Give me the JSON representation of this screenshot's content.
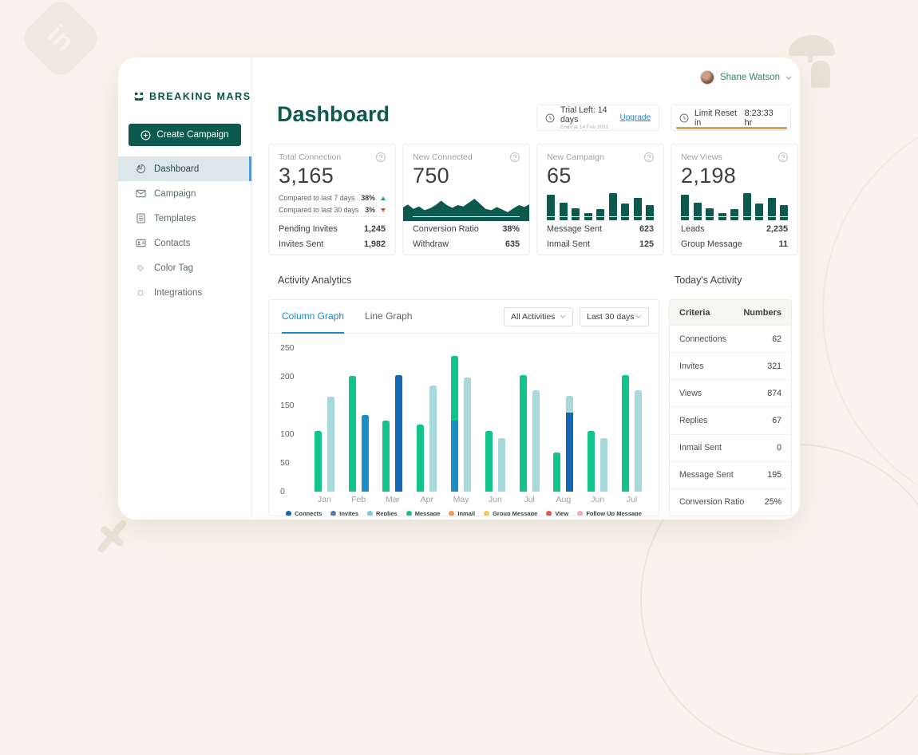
{
  "brand": {
    "name": "BREAKING MARS"
  },
  "sidebar": {
    "create_button": "Create Campaign",
    "items": [
      {
        "label": "Dashboard"
      },
      {
        "label": "Campaign"
      },
      {
        "label": "Templates"
      },
      {
        "label": "Contacts"
      },
      {
        "label": "Color Tag"
      },
      {
        "label": "Integrations"
      }
    ]
  },
  "header": {
    "user_name": "Shane Watson",
    "page_title": "Dashboard",
    "trial_label": "Trial Left: 14 days",
    "trial_sub": "Ends at 14 Feb 2021",
    "upgrade_label": "Upgrade",
    "limit_label": "Limit Reset in",
    "limit_value": "8:23:33 hr"
  },
  "icons": {
    "help": "?"
  },
  "stat_cards": [
    {
      "title": "Total Connection",
      "value": "3,165",
      "compare": [
        {
          "label": "Compared to last 7 days",
          "value": "38%",
          "dir": "up"
        },
        {
          "label": "Compared to last 30 days",
          "value": "3%",
          "dir": "down"
        }
      ],
      "rows": [
        {
          "label": "Pending Invites",
          "value": "1,245"
        },
        {
          "label": "Invites Sent",
          "value": "1,982"
        }
      ]
    },
    {
      "title": "New Connected",
      "value": "750",
      "spark": [
        42,
        52,
        38,
        46,
        34,
        40,
        50,
        64,
        50,
        42,
        50,
        46,
        58,
        70,
        54,
        38,
        34,
        44,
        36,
        28,
        40,
        50,
        44,
        54
      ],
      "rows": [
        {
          "label": "Conversion Ratio",
          "value": "38%"
        },
        {
          "label": "Withdraw",
          "value": "635"
        }
      ]
    },
    {
      "title": "New Campaign",
      "value": "65",
      "mini_bars": [
        80,
        55,
        38,
        22,
        35,
        85,
        52,
        70,
        48
      ],
      "rows": [
        {
          "label": "Message Sent",
          "value": "623"
        },
        {
          "label": "Inmail Sent",
          "value": "125"
        }
      ]
    },
    {
      "title": "New Views",
      "value": "2,198",
      "mini_bars": [
        80,
        55,
        38,
        22,
        35,
        85,
        52,
        70,
        48
      ],
      "rows": [
        {
          "label": "Leads",
          "value": "2,235"
        },
        {
          "label": "Group Message",
          "value": "11"
        }
      ]
    }
  ],
  "analytics": {
    "section_title": "Activity Analytics",
    "tabs": [
      {
        "label": "Column Graph",
        "active": true
      },
      {
        "label": "Line Graph",
        "active": false
      }
    ],
    "filters": [
      {
        "value": "All Activities"
      },
      {
        "value": "Last 30 days"
      }
    ]
  },
  "chart_data": {
    "type": "bar",
    "title": "Activity Analytics",
    "ylim": [
      0,
      250
    ],
    "yticks": [
      "250",
      "200",
      "150",
      "100",
      "50",
      "0"
    ],
    "categories": [
      "Jan",
      "Feb",
      "Mar",
      "Apr",
      "May",
      "Jun",
      "Jul",
      "Aug",
      "Jun",
      "Jul"
    ],
    "palette": {
      "green": "#12c48b",
      "lightteal": "#a7d8dc",
      "blue": "#1b8ec4",
      "darkblue": "#1467b2"
    },
    "groups": [
      {
        "month": "Jan",
        "bars": [
          [
            {
              "c": "green",
              "v": 105
            }
          ],
          [
            {
              "c": "lightteal",
              "v": 165
            }
          ]
        ]
      },
      {
        "month": "Feb",
        "bars": [
          [
            {
              "c": "green",
              "v": 202
            }
          ],
          [
            {
              "c": "blue",
              "v": 133
            }
          ]
        ]
      },
      {
        "month": "Mar",
        "bars": [
          [
            {
              "c": "green",
              "v": 123
            }
          ],
          [
            {
              "c": "darkblue",
              "v": 203
            }
          ]
        ]
      },
      {
        "month": "Apr",
        "bars": [
          [
            {
              "c": "green",
              "v": 117
            }
          ],
          [
            {
              "c": "lightteal",
              "v": 185
            }
          ]
        ]
      },
      {
        "month": "May",
        "bars": [
          [
            {
              "c": "blue",
              "v": 123
            },
            {
              "c": "green",
              "v": 113
            }
          ],
          [
            {
              "c": "lightteal",
              "v": 199
            }
          ]
        ]
      },
      {
        "month": "Jun",
        "bars": [
          [
            {
              "c": "green",
              "v": 105
            }
          ],
          [
            {
              "c": "lightteal",
              "v": 93
            }
          ]
        ]
      },
      {
        "month": "Jul",
        "bars": [
          [
            {
              "c": "green",
              "v": 203
            }
          ],
          [
            {
              "c": "lightteal",
              "v": 177
            }
          ]
        ]
      },
      {
        "month": "Aug",
        "bars": [
          [
            {
              "c": "green",
              "v": 68
            }
          ],
          [
            {
              "c": "darkblue",
              "v": 137
            },
            {
              "c": "lightteal",
              "v": 30
            }
          ]
        ]
      },
      {
        "month": "Jun",
        "bars": [
          [
            {
              "c": "green",
              "v": 105
            }
          ],
          [
            {
              "c": "lightteal",
              "v": 93
            }
          ]
        ]
      },
      {
        "month": "Jul",
        "bars": [
          [
            {
              "c": "green",
              "v": 203
            }
          ],
          [
            {
              "c": "lightteal",
              "v": 177
            }
          ]
        ]
      }
    ],
    "legend": [
      {
        "label": "Connects",
        "color": "#1565b0"
      },
      {
        "label": "Invites",
        "color": "#5b80a8"
      },
      {
        "label": "Replies",
        "color": "#7cc6e8"
      },
      {
        "label": "Message",
        "color": "#12c48b"
      },
      {
        "label": "Inmail",
        "color": "#f2994a"
      },
      {
        "label": "Group Message",
        "color": "#f2c94c"
      },
      {
        "label": "View",
        "color": "#e0564a"
      },
      {
        "label": "Follow Up Message",
        "color": "#f3a7c3"
      }
    ]
  },
  "today": {
    "section_title": "Today's Activity",
    "col_label": "Criteria",
    "col_value": "Numbers",
    "rows": [
      {
        "label": "Connections",
        "value": "62"
      },
      {
        "label": "Invites",
        "value": "321"
      },
      {
        "label": "Views",
        "value": "874"
      },
      {
        "label": "Replies",
        "value": "67"
      },
      {
        "label": "Inmail Sent",
        "value": "0"
      },
      {
        "label": "Message Sent",
        "value": "195"
      },
      {
        "label": "Conversion Ratio",
        "value": "25%"
      }
    ]
  },
  "colors": {
    "brand_teal": "#0d5a4e",
    "accent_blue": "#1e88c7",
    "progress_orange": "#dc9f4b",
    "positive_green": "#27a85f",
    "negative_red": "#e14b3b"
  }
}
